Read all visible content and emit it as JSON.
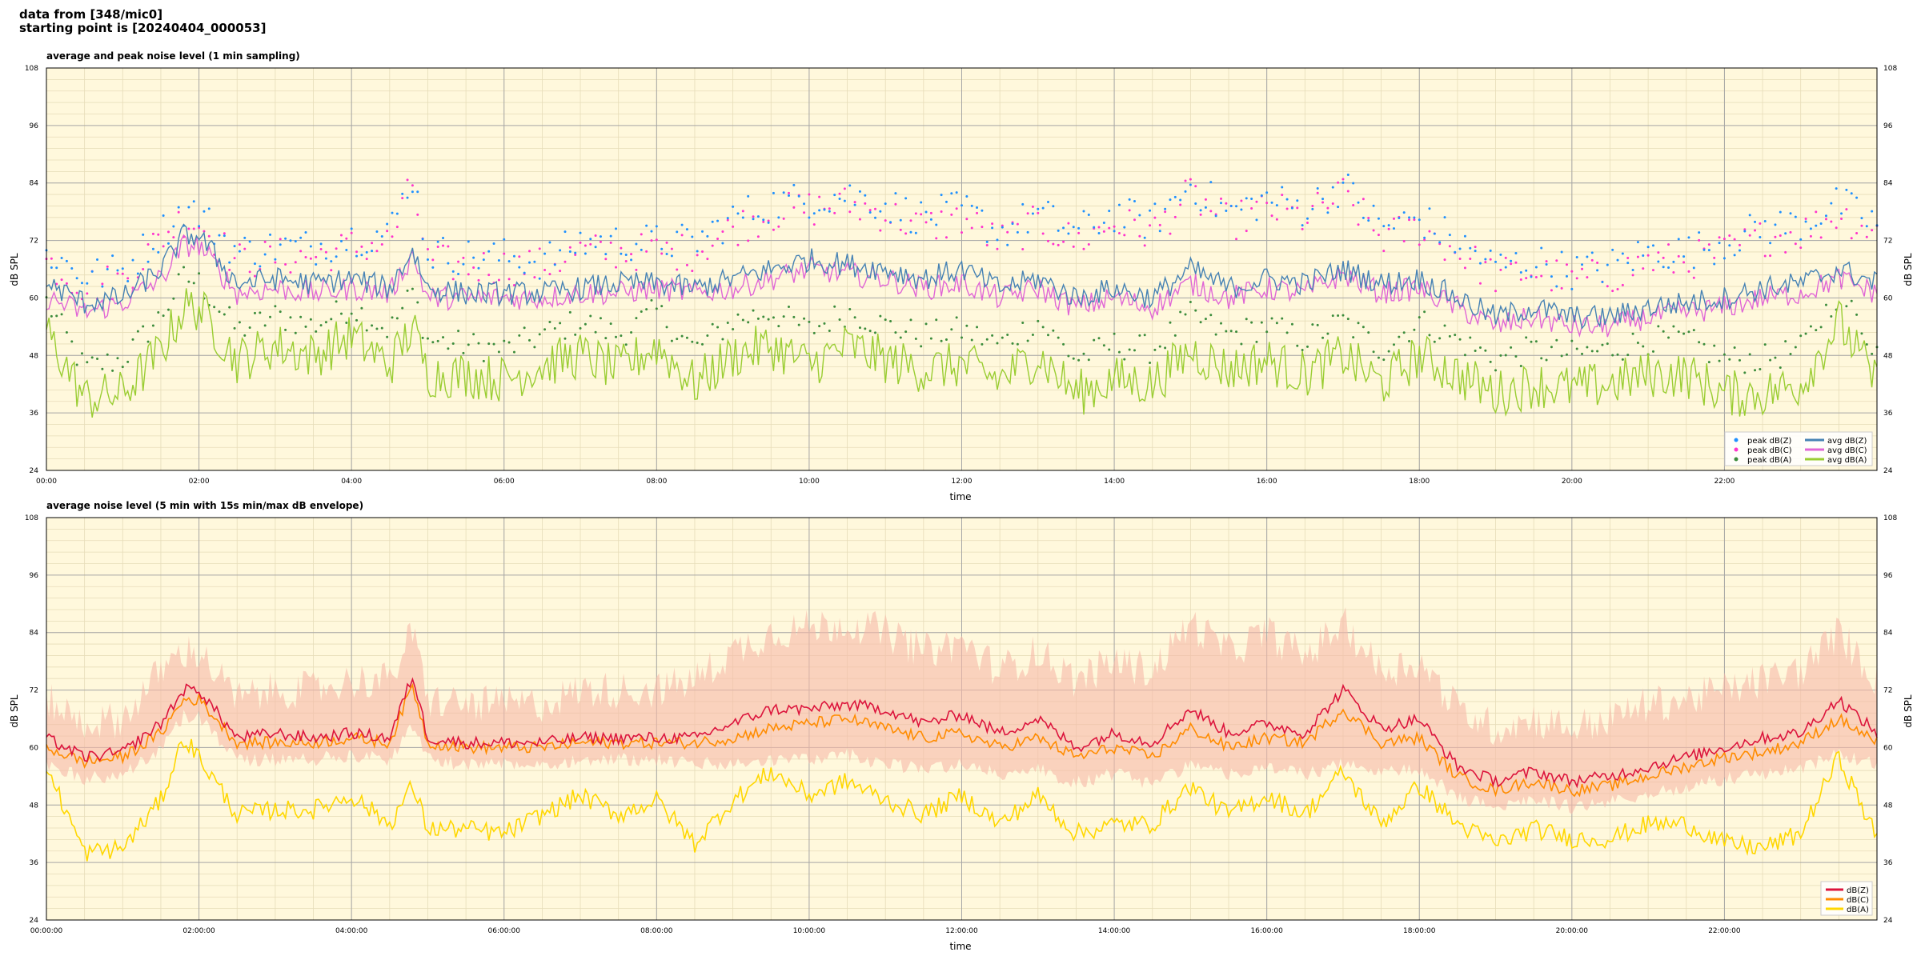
{
  "header": {
    "line1": "data from [348/mic0]",
    "line2": "starting point is [20240404_000053]"
  },
  "colors": {
    "background": "#fff8dc",
    "grid_major": "#a6a6a6",
    "grid_minor": "#e6dcb8",
    "peak_z": "#1e90ff",
    "peak_c": "#ff33cc",
    "peak_a": "#3c8c3c",
    "avg_z": "#4682b4",
    "avg_c": "#e066d6",
    "avg_a": "#9acd32",
    "top_highlight": "#9966cc",
    "db_z": "#dc143c",
    "db_c": "#ff8c00",
    "db_a": "#ffd700",
    "envelope": "#f7b9a8"
  },
  "chart_data": [
    {
      "type": "line",
      "title": "average and peak noise level (1 min sampling)",
      "xlabel": "time",
      "ylabel": "dB SPL",
      "xlim": [
        0,
        24
      ],
      "ylim": [
        24,
        108
      ],
      "yticks": [
        "24",
        "36",
        "48",
        "60",
        "72",
        "84",
        "96",
        "108"
      ],
      "xticks": [
        "00:00",
        "02:00",
        "04:00",
        "06:00",
        "08:00",
        "10:00",
        "12:00",
        "14:00",
        "16:00",
        "18:00",
        "20:00",
        "22:00"
      ],
      "grid": true,
      "legend_position": "bottom-right",
      "legend": [
        "peak dB(Z)",
        "peak dB(C)",
        "peak dB(A)",
        "avg dB(Z)",
        "avg dB(C)",
        "avg dB(A)"
      ],
      "x_hours": [
        0,
        0.5,
        1,
        1.5,
        1.8,
        2,
        2.5,
        3,
        3.5,
        4,
        4.5,
        4.8,
        5,
        5.5,
        6,
        6.5,
        7,
        7.5,
        8,
        8.5,
        9,
        9.5,
        10,
        10.5,
        11,
        11.5,
        12,
        12.5,
        13,
        13.5,
        14,
        14.5,
        15,
        15.5,
        16,
        16.5,
        17,
        17.5,
        18,
        18.5,
        19,
        19.5,
        20,
        20.5,
        21,
        21.5,
        22,
        22.5,
        23,
        23.5,
        24
      ],
      "series": [
        {
          "name": "avg dB(Z)",
          "values": [
            63,
            59,
            60,
            66,
            73,
            73,
            63,
            64,
            63,
            64,
            62,
            70,
            62,
            61,
            61,
            61,
            62,
            63,
            63,
            62,
            64,
            66,
            68,
            67,
            66,
            64,
            66,
            62,
            64,
            60,
            62,
            60,
            66,
            62,
            64,
            63,
            66,
            63,
            64,
            60,
            56,
            58,
            56,
            56,
            58,
            59,
            60,
            62,
            63,
            66,
            63
          ]
        },
        {
          "name": "avg dB(C)",
          "values": [
            60,
            57,
            59,
            64,
            71,
            71,
            61,
            62,
            61,
            62,
            61,
            69,
            60,
            60,
            60,
            60,
            61,
            61,
            62,
            61,
            62,
            64,
            66,
            65,
            64,
            62,
            63,
            60,
            62,
            58,
            60,
            58,
            63,
            60,
            62,
            61,
            65,
            61,
            62,
            58,
            54,
            56,
            54,
            54,
            56,
            57,
            58,
            60,
            61,
            64,
            61
          ]
        },
        {
          "name": "avg dB(A)",
          "values": [
            53,
            39,
            40,
            49,
            58,
            58,
            47,
            50,
            48,
            52,
            46,
            54,
            44,
            44,
            43,
            46,
            48,
            45,
            50,
            42,
            48,
            50,
            46,
            50,
            47,
            45,
            46,
            43,
            48,
            40,
            43,
            42,
            49,
            45,
            47,
            44,
            48,
            42,
            48,
            44,
            40,
            42,
            41,
            42,
            44,
            44,
            40,
            40,
            42,
            55,
            42
          ]
        },
        {
          "name": "peak dB(Z)",
          "values": [
            68,
            63,
            64,
            72,
            77,
            76,
            68,
            69,
            69,
            71,
            72,
            84,
            68,
            67,
            67,
            66,
            70,
            70,
            70,
            70,
            75,
            78,
            79,
            80,
            78,
            75,
            77,
            72,
            76,
            72,
            76,
            74,
            82,
            76,
            79,
            77,
            82,
            73,
            75,
            70,
            65,
            66,
            64,
            65,
            68,
            68,
            70,
            73,
            74,
            78,
            74
          ]
        },
        {
          "name": "peak dB(C)",
          "values": [
            66,
            61,
            62,
            71,
            75,
            74,
            66,
            67,
            67,
            69,
            70,
            82,
            66,
            65,
            65,
            65,
            68,
            68,
            68,
            68,
            73,
            76,
            77,
            78,
            76,
            73,
            75,
            70,
            74,
            70,
            74,
            72,
            80,
            74,
            77,
            75,
            80,
            71,
            73,
            68,
            63,
            64,
            62,
            63,
            66,
            66,
            68,
            71,
            72,
            76,
            72
          ]
        },
        {
          "name": "peak dB(A)",
          "values": [
            58,
            44,
            46,
            55,
            63,
            62,
            52,
            55,
            53,
            57,
            52,
            60,
            50,
            49,
            48,
            51,
            54,
            51,
            56,
            48,
            54,
            56,
            52,
            56,
            53,
            51,
            52,
            49,
            54,
            46,
            49,
            48,
            55,
            51,
            53,
            50,
            54,
            48,
            54,
            50,
            46,
            48,
            47,
            48,
            50,
            50,
            46,
            46,
            48,
            60,
            48
          ]
        }
      ]
    },
    {
      "type": "line",
      "title": "average noise level (5 min with 15s min/max dB envelope)",
      "xlabel": "time",
      "ylabel": "dB SPL",
      "xlim": [
        0,
        24
      ],
      "ylim": [
        24,
        108
      ],
      "yticks": [
        "24",
        "36",
        "48",
        "60",
        "72",
        "84",
        "96",
        "108"
      ],
      "xticks": [
        "00:00:00",
        "02:00:00",
        "04:00:00",
        "06:00:00",
        "08:00:00",
        "10:00:00",
        "12:00:00",
        "14:00:00",
        "16:00:00",
        "18:00:00",
        "20:00:00",
        "22:00:00"
      ],
      "grid": true,
      "legend_position": "bottom-right",
      "legend": [
        "dB(Z)",
        "dB(C)",
        "dB(A)"
      ],
      "x_hours": [
        0,
        0.5,
        1,
        1.5,
        1.8,
        2,
        2.5,
        3,
        3.5,
        4,
        4.5,
        4.8,
        5,
        5.5,
        6,
        6.5,
        7,
        7.5,
        8,
        8.5,
        9,
        9.5,
        10,
        10.5,
        11,
        11.5,
        12,
        12.5,
        13,
        13.5,
        14,
        14.5,
        15,
        15.5,
        16,
        16.5,
        17,
        17.5,
        18,
        18.5,
        19,
        19.5,
        20,
        20.5,
        21,
        21.5,
        22,
        22.5,
        23,
        23.5,
        24
      ],
      "series": [
        {
          "name": "dB(Z)",
          "values": [
            62,
            58,
            59,
            65,
            72,
            72,
            62,
            63,
            62,
            63,
            62,
            75,
            62,
            61,
            61,
            61,
            62,
            62,
            62,
            62,
            65,
            68,
            68,
            69,
            68,
            65,
            67,
            63,
            66,
            60,
            63,
            61,
            68,
            63,
            65,
            63,
            72,
            64,
            66,
            56,
            53,
            55,
            53,
            54,
            56,
            58,
            60,
            62,
            63,
            70,
            63
          ]
        },
        {
          "name": "dB(C)",
          "values": [
            60,
            57,
            58,
            63,
            70,
            70,
            61,
            61,
            61,
            62,
            61,
            73,
            61,
            60,
            60,
            60,
            61,
            61,
            61,
            61,
            62,
            64,
            65,
            66,
            64,
            62,
            63,
            60,
            62,
            58,
            60,
            58,
            64,
            60,
            62,
            61,
            68,
            61,
            62,
            54,
            51,
            53,
            51,
            52,
            54,
            56,
            58,
            59,
            61,
            66,
            61
          ]
        },
        {
          "name": "dB(A)",
          "values": [
            56,
            38,
            39,
            49,
            62,
            58,
            46,
            47,
            47,
            50,
            44,
            52,
            43,
            43,
            42,
            46,
            50,
            46,
            49,
            40,
            49,
            55,
            50,
            53,
            49,
            46,
            50,
            44,
            50,
            42,
            44,
            44,
            52,
            46,
            50,
            46,
            55,
            44,
            52,
            44,
            40,
            43,
            41,
            41,
            44,
            44,
            40,
            39,
            42,
            58,
            41
          ]
        },
        {
          "name": "envelope max",
          "values": [
            66,
            61,
            62,
            72,
            76,
            76,
            66,
            68,
            68,
            70,
            70,
            80,
            66,
            65,
            65,
            65,
            68,
            68,
            68,
            70,
            76,
            80,
            81,
            82,
            80,
            76,
            78,
            72,
            76,
            70,
            74,
            72,
            82,
            76,
            80,
            75,
            82,
            72,
            74,
            64,
            60,
            62,
            60,
            62,
            65,
            66,
            68,
            70,
            72,
            80,
            70
          ]
        },
        {
          "name": "envelope min",
          "values": [
            58,
            55,
            56,
            61,
            68,
            68,
            59,
            59,
            59,
            60,
            59,
            66,
            59,
            58,
            58,
            58,
            59,
            59,
            59,
            58,
            58,
            59,
            59,
            60,
            58,
            57,
            58,
            56,
            57,
            54,
            56,
            54,
            58,
            56,
            57,
            56,
            58,
            56,
            57,
            51,
            49,
            51,
            49,
            50,
            52,
            53,
            55,
            56,
            57,
            60,
            58
          ]
        }
      ]
    }
  ]
}
